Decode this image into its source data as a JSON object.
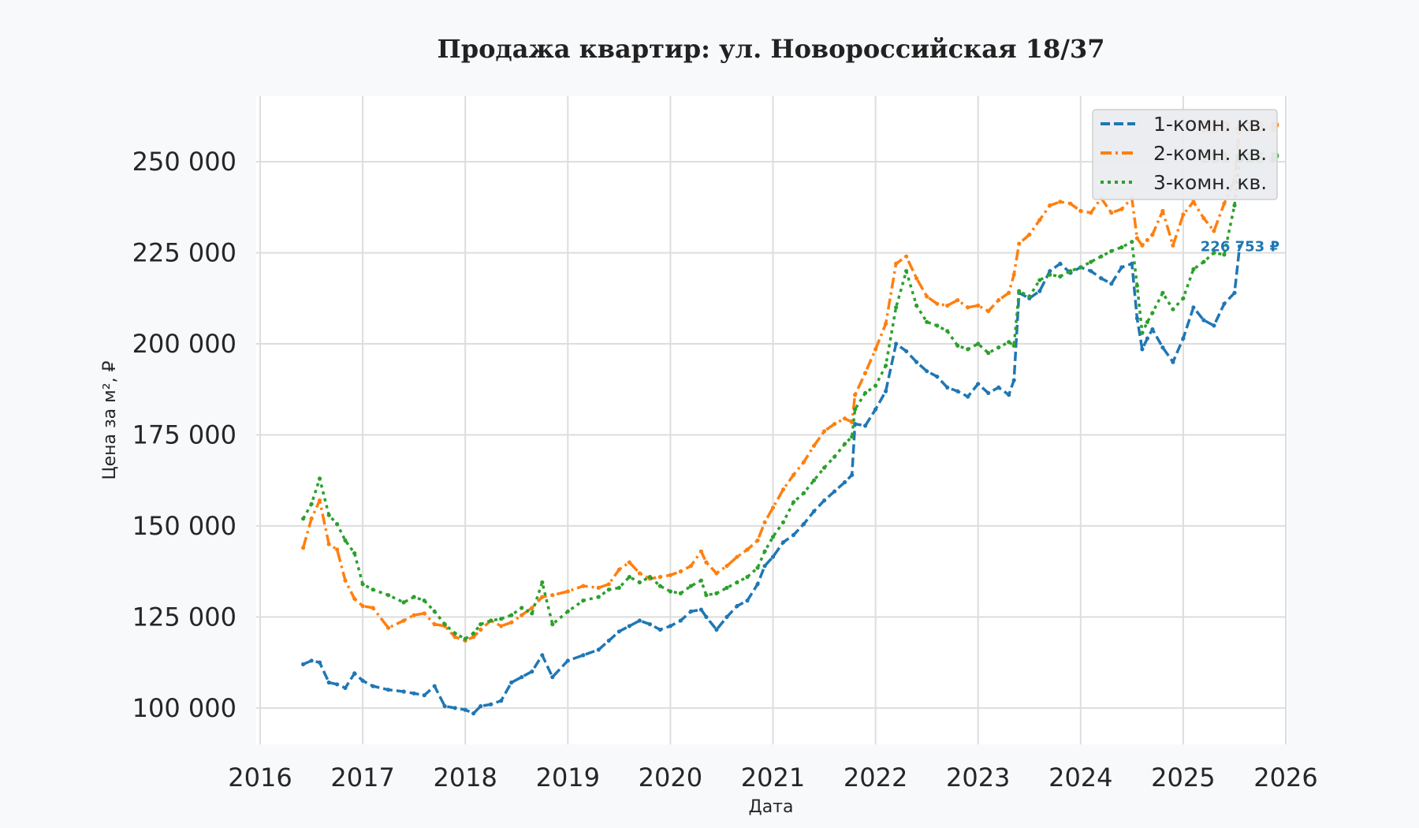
{
  "chart_data": {
    "type": "line",
    "title": "Продажа квартир: ул. Новороссийская 18/37",
    "xlabel": "Дата",
    "ylabel": "Цена за м², ₽",
    "xlim": [
      2016.0,
      2026.0
    ],
    "ylim": [
      90000,
      268000
    ],
    "x_ticks": [
      {
        "value": 2016,
        "label": "2016"
      },
      {
        "value": 2017,
        "label": "2017"
      },
      {
        "value": 2018,
        "label": "2018"
      },
      {
        "value": 2019,
        "label": "2019"
      },
      {
        "value": 2020,
        "label": "2020"
      },
      {
        "value": 2021,
        "label": "2021"
      },
      {
        "value": 2022,
        "label": "2022"
      },
      {
        "value": 2023,
        "label": "2023"
      },
      {
        "value": 2024,
        "label": "2024"
      },
      {
        "value": 2025,
        "label": "2025"
      },
      {
        "value": 2026,
        "label": "2026"
      }
    ],
    "y_ticks": [
      {
        "value": 100000,
        "label": "100 000"
      },
      {
        "value": 125000,
        "label": "125 000"
      },
      {
        "value": 150000,
        "label": "150 000"
      },
      {
        "value": 175000,
        "label": "175 000"
      },
      {
        "value": 200000,
        "label": "200 000"
      },
      {
        "value": 225000,
        "label": "225 000"
      },
      {
        "value": 250000,
        "label": "250 000"
      }
    ],
    "grid": true,
    "legend_position": "top-right",
    "series": [
      {
        "name": "1-комн. кв.",
        "color": "#1f77b4",
        "style": "dashed",
        "x": [
          2016.42,
          2016.5,
          2016.58,
          2016.67,
          2016.75,
          2016.83,
          2016.92,
          2017.0,
          2017.1,
          2017.25,
          2017.4,
          2017.5,
          2017.6,
          2017.7,
          2017.8,
          2017.9,
          2018.0,
          2018.08,
          2018.15,
          2018.25,
          2018.35,
          2018.45,
          2018.55,
          2018.65,
          2018.75,
          2018.85,
          2019.0,
          2019.15,
          2019.3,
          2019.4,
          2019.5,
          2019.6,
          2019.7,
          2019.8,
          2019.9,
          2020.0,
          2020.1,
          2020.2,
          2020.3,
          2020.35,
          2020.45,
          2020.55,
          2020.65,
          2020.75,
          2020.85,
          2020.92,
          2021.0,
          2021.1,
          2021.2,
          2021.3,
          2021.4,
          2021.5,
          2021.6,
          2021.7,
          2021.77,
          2021.8,
          2021.9,
          2022.0,
          2022.1,
          2022.2,
          2022.3,
          2022.4,
          2022.5,
          2022.6,
          2022.7,
          2022.8,
          2022.9,
          2023.0,
          2023.1,
          2023.2,
          2023.3,
          2023.35,
          2023.4,
          2023.5,
          2023.6,
          2023.7,
          2023.8,
          2023.9,
          2024.0,
          2024.1,
          2024.2,
          2024.3,
          2024.4,
          2024.5,
          2024.55,
          2024.6,
          2024.65,
          2024.7,
          2024.8,
          2024.9,
          2025.0,
          2025.1,
          2025.2,
          2025.3,
          2025.4,
          2025.5,
          2025.55
        ],
        "y": [
          112000,
          113000,
          112500,
          107000,
          106500,
          105500,
          109500,
          107500,
          106000,
          105000,
          104500,
          104000,
          103500,
          106000,
          100500,
          100000,
          99500,
          98500,
          100500,
          101000,
          102000,
          107000,
          108500,
          110000,
          114500,
          108500,
          113000,
          114500,
          116000,
          118500,
          121000,
          122500,
          124000,
          123000,
          121500,
          122500,
          124000,
          126500,
          127000,
          125000,
          121500,
          125000,
          128000,
          129500,
          134000,
          139000,
          141500,
          145500,
          147500,
          150500,
          154000,
          157000,
          159500,
          162000,
          164000,
          178000,
          177500,
          182000,
          187000,
          200000,
          198000,
          195000,
          192500,
          191000,
          188000,
          187000,
          185500,
          189000,
          186500,
          188000,
          186000,
          190000,
          214000,
          212500,
          214500,
          220000,
          222000,
          219500,
          221000,
          220000,
          218000,
          216500,
          221000,
          222000,
          207000,
          198500,
          201500,
          204000,
          199000,
          195000,
          201500,
          210000,
          206500,
          205000,
          211000,
          214000,
          226753
        ]
      },
      {
        "name": "2-комн. кв.",
        "color": "#ff7f0e",
        "style": "dashdot",
        "x": [
          2016.42,
          2016.5,
          2016.58,
          2016.67,
          2016.75,
          2016.83,
          2016.92,
          2017.0,
          2017.1,
          2017.25,
          2017.4,
          2017.5,
          2017.6,
          2017.7,
          2017.8,
          2017.9,
          2018.0,
          2018.08,
          2018.15,
          2018.25,
          2018.35,
          2018.45,
          2018.55,
          2018.65,
          2018.75,
          2018.85,
          2019.0,
          2019.15,
          2019.3,
          2019.4,
          2019.5,
          2019.6,
          2019.7,
          2019.8,
          2019.9,
          2020.0,
          2020.1,
          2020.2,
          2020.3,
          2020.35,
          2020.45,
          2020.55,
          2020.65,
          2020.75,
          2020.85,
          2020.92,
          2021.0,
          2021.1,
          2021.2,
          2021.3,
          2021.4,
          2021.5,
          2021.6,
          2021.7,
          2021.77,
          2021.8,
          2021.9,
          2022.0,
          2022.1,
          2022.2,
          2022.3,
          2022.4,
          2022.5,
          2022.6,
          2022.7,
          2022.8,
          2022.9,
          2023.0,
          2023.1,
          2023.2,
          2023.3,
          2023.35,
          2023.4,
          2023.5,
          2023.6,
          2023.7,
          2023.8,
          2023.9,
          2024.0,
          2024.1,
          2024.2,
          2024.3,
          2024.4,
          2024.5,
          2024.55,
          2024.6,
          2024.65,
          2024.7,
          2024.8,
          2024.9,
          2025.0,
          2025.1,
          2025.2,
          2025.3,
          2025.4,
          2025.5,
          2025.55
        ],
        "y": [
          144000,
          152000,
          157000,
          145000,
          143500,
          135000,
          130000,
          128000,
          127500,
          122000,
          124000,
          125500,
          126000,
          123000,
          122500,
          119500,
          118500,
          119500,
          121500,
          124000,
          122500,
          123500,
          125500,
          127500,
          130500,
          131000,
          132000,
          133500,
          133000,
          134000,
          138000,
          140000,
          137000,
          135500,
          136000,
          136500,
          137500,
          139000,
          143000,
          140000,
          137000,
          139000,
          141500,
          143500,
          146000,
          151000,
          155000,
          160000,
          164000,
          167500,
          172000,
          176000,
          178000,
          179500,
          178500,
          186000,
          192000,
          198500,
          205500,
          222000,
          224000,
          218000,
          213000,
          211000,
          210500,
          212000,
          210000,
          210500,
          209000,
          212000,
          214000,
          219000,
          227500,
          230000,
          234000,
          238000,
          239000,
          238500,
          236500,
          236000,
          240000,
          236000,
          237000,
          240000,
          229000,
          227000,
          228500,
          230000,
          236500,
          227000,
          235500,
          239000,
          234500,
          231000,
          238500,
          245000,
          259428
        ]
      },
      {
        "name": "3-комн. кв.",
        "color": "#2ca02c",
        "style": "dotted",
        "x": [
          2016.42,
          2016.5,
          2016.58,
          2016.67,
          2016.75,
          2016.83,
          2016.92,
          2017.0,
          2017.1,
          2017.25,
          2017.4,
          2017.5,
          2017.6,
          2017.7,
          2017.8,
          2017.9,
          2018.0,
          2018.08,
          2018.15,
          2018.25,
          2018.35,
          2018.45,
          2018.55,
          2018.65,
          2018.75,
          2018.85,
          2019.0,
          2019.15,
          2019.3,
          2019.4,
          2019.5,
          2019.6,
          2019.7,
          2019.8,
          2019.9,
          2020.0,
          2020.1,
          2020.2,
          2020.3,
          2020.35,
          2020.45,
          2020.55,
          2020.65,
          2020.75,
          2020.85,
          2020.92,
          2021.0,
          2021.1,
          2021.2,
          2021.3,
          2021.4,
          2021.5,
          2021.6,
          2021.7,
          2021.77,
          2021.8,
          2021.9,
          2022.0,
          2022.1,
          2022.2,
          2022.3,
          2022.4,
          2022.5,
          2022.6,
          2022.7,
          2022.8,
          2022.9,
          2023.0,
          2023.1,
          2023.2,
          2023.3,
          2023.35,
          2023.4,
          2023.5,
          2023.6,
          2023.7,
          2023.8,
          2023.9,
          2024.0,
          2024.1,
          2024.2,
          2024.3,
          2024.4,
          2024.5,
          2024.55,
          2024.6,
          2024.65,
          2024.7,
          2024.8,
          2024.9,
          2025.0,
          2025.1,
          2025.2,
          2025.3,
          2025.4,
          2025.5,
          2025.55
        ],
        "y": [
          152000,
          156000,
          163000,
          153000,
          150500,
          146000,
          142500,
          134000,
          132500,
          131000,
          129000,
          130500,
          129500,
          126500,
          123000,
          120500,
          119000,
          120500,
          123000,
          124000,
          124500,
          125500,
          127500,
          126000,
          134500,
          123000,
          126500,
          129500,
          130500,
          132500,
          133000,
          136000,
          134500,
          136000,
          133500,
          132000,
          131500,
          133500,
          135000,
          131000,
          131500,
          133000,
          134500,
          136000,
          138500,
          143000,
          147000,
          151000,
          156500,
          159000,
          162500,
          166000,
          169000,
          172500,
          174500,
          182000,
          186500,
          188500,
          194000,
          210000,
          220000,
          210500,
          206000,
          205000,
          203500,
          199500,
          198500,
          200000,
          197500,
          199000,
          200500,
          199500,
          214500,
          213000,
          217500,
          219000,
          218500,
          220000,
          221000,
          222500,
          224000,
          225500,
          226500,
          228000,
          216000,
          203000,
          206000,
          208500,
          214000,
          209500,
          212500,
          220500,
          222500,
          225000,
          224500,
          238000,
          251026
        ]
      }
    ],
    "end_labels": [
      {
        "series": 0,
        "text": "226 753 ₽"
      },
      {
        "series": 1,
        "text": "259 428 ₽"
      },
      {
        "series": 2,
        "text": "251 026 ₽"
      }
    ]
  }
}
